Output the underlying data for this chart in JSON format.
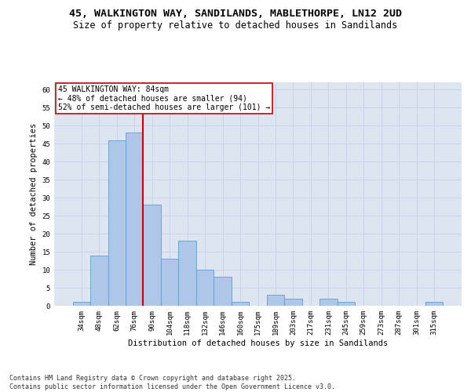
{
  "title_line1": "45, WALKINGTON WAY, SANDILANDS, MABLETHORPE, LN12 2UD",
  "title_line2": "Size of property relative to detached houses in Sandilands",
  "xlabel": "Distribution of detached houses by size in Sandilands",
  "ylabel": "Number of detached properties",
  "categories": [
    "34sqm",
    "48sqm",
    "62sqm",
    "76sqm",
    "90sqm",
    "104sqm",
    "118sqm",
    "132sqm",
    "146sqm",
    "160sqm",
    "175sqm",
    "189sqm",
    "203sqm",
    "217sqm",
    "231sqm",
    "245sqm",
    "259sqm",
    "273sqm",
    "287sqm",
    "301sqm",
    "315sqm"
  ],
  "values": [
    1,
    14,
    46,
    48,
    28,
    13,
    18,
    10,
    8,
    1,
    0,
    3,
    2,
    0,
    2,
    1,
    0,
    0,
    0,
    0,
    1
  ],
  "bar_color": "#aec6e8",
  "bar_edge_color": "#5a9fd4",
  "annotation_box_text": "45 WALKINGTON WAY: 84sqm\n← 48% of detached houses are smaller (94)\n52% of semi-detached houses are larger (101) →",
  "annotation_box_color": "#ffffff",
  "annotation_box_edge_color": "#cc0000",
  "vline_x_index": 3,
  "vline_color": "#cc0000",
  "grid_color": "#c8d4e8",
  "background_color": "#dde5f0",
  "ylim": [
    0,
    62
  ],
  "yticks": [
    0,
    5,
    10,
    15,
    20,
    25,
    30,
    35,
    40,
    45,
    50,
    55,
    60
  ],
  "footnote": "Contains HM Land Registry data © Crown copyright and database right 2025.\nContains public sector information licensed under the Open Government Licence v3.0.",
  "title_fontsize": 9.5,
  "subtitle_fontsize": 8.5,
  "axis_label_fontsize": 7.5,
  "tick_fontsize": 6.5,
  "annotation_fontsize": 7,
  "footnote_fontsize": 6
}
